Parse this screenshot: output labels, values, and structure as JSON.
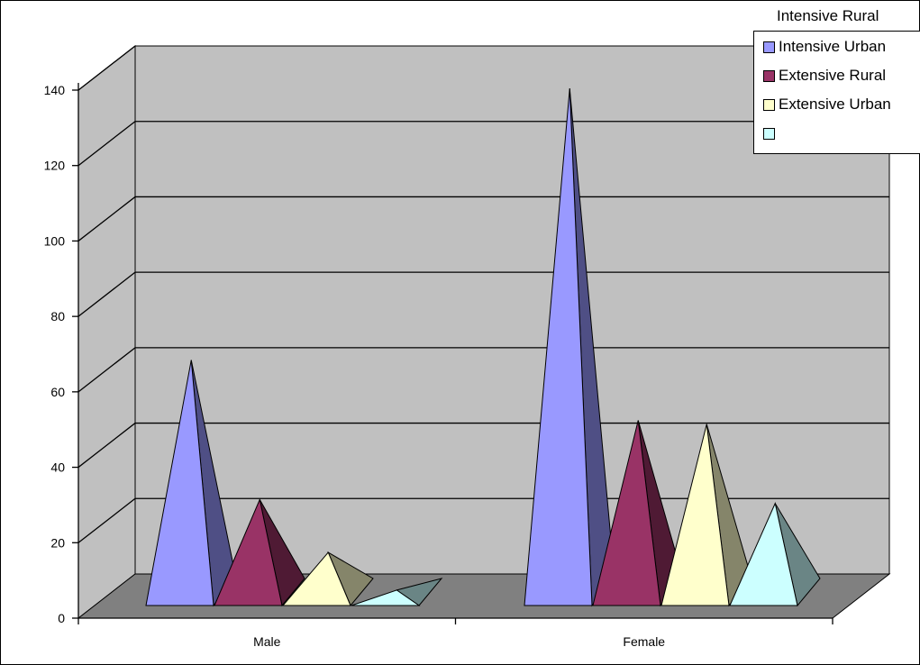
{
  "chart_data": {
    "type": "bar",
    "style": "3d-pyramid",
    "categories": [
      "Male",
      "Female"
    ],
    "series": [
      {
        "name": "Intensive Urban",
        "values": [
          67,
          139
        ],
        "color": "#9999ff",
        "side": "#4f4f85"
      },
      {
        "name": "Extensive Rural",
        "values": [
          30,
          51
        ],
        "color": "#993366",
        "side": "#4f1a34"
      },
      {
        "name": "Extensive Urban",
        "values": [
          16,
          50
        ],
        "color": "#ffffcc",
        "side": "#85856a"
      },
      {
        "name": "",
        "values": [
          6,
          29
        ],
        "color": "#ccffff",
        "side": "#6a8585"
      }
    ],
    "legend_title": "Intensive Rural",
    "yticks": [
      "0",
      "20",
      "40",
      "60",
      "80",
      "100",
      "120",
      "140"
    ],
    "ylim": [
      0,
      140
    ],
    "grid": true,
    "legend_position": "top-right",
    "colors": {
      "wall": "#c0c0c0",
      "floor": "#808080",
      "gridline": "#000000"
    }
  }
}
